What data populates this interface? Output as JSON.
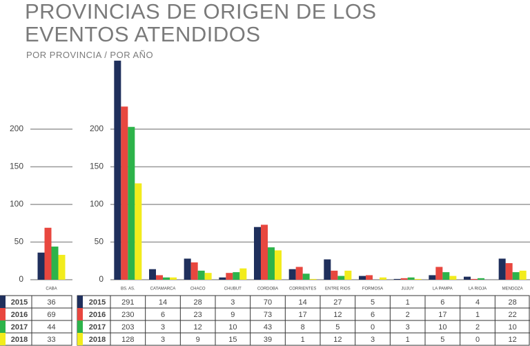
{
  "title": "PROVINCIAS DE ORIGEN DE LOS EVENTOS ATENDIDOS",
  "subtitle": "POR PROVINCIA / POR AÑO",
  "chart_data": [
    {
      "type": "bar",
      "categories": [
        "CABA"
      ],
      "series": [
        {
          "name": "2015",
          "color": "#1f2f5c",
          "values": [
            36
          ]
        },
        {
          "name": "2016",
          "color": "#e8473f",
          "values": [
            69
          ]
        },
        {
          "name": "2017",
          "color": "#2db34a",
          "values": [
            44
          ]
        },
        {
          "name": "2018",
          "color": "#f2ec1c",
          "values": [
            33
          ]
        }
      ],
      "ylim": [
        0,
        300
      ],
      "yticks": [
        0,
        50,
        100,
        150,
        200
      ],
      "grid": true
    },
    {
      "type": "bar",
      "categories": [
        "BS. AS.",
        "CATAMARCA",
        "CHACO",
        "CHUBUT",
        "CORDOBA",
        "CORRIENTES",
        "ENTRE RIOS",
        "FORMOSA",
        "JUJUY",
        "LA PAMPA",
        "LA RIOJA",
        "MENDOZA"
      ],
      "series": [
        {
          "name": "2015",
          "color": "#1f2f5c",
          "values": [
            291,
            14,
            28,
            3,
            70,
            14,
            27,
            5,
            1,
            6,
            4,
            28
          ]
        },
        {
          "name": "2016",
          "color": "#e8473f",
          "values": [
            230,
            6,
            23,
            9,
            73,
            17,
            12,
            6,
            2,
            17,
            1,
            22
          ]
        },
        {
          "name": "2017",
          "color": "#2db34a",
          "values": [
            203,
            3,
            12,
            10,
            43,
            8,
            5,
            0,
            3,
            10,
            2,
            10
          ]
        },
        {
          "name": "2018",
          "color": "#f2ec1c",
          "values": [
            128,
            3,
            9,
            15,
            39,
            1,
            12,
            3,
            1,
            5,
            0,
            12
          ]
        }
      ],
      "ylim": [
        0,
        300
      ],
      "yticks": [
        0,
        50,
        100,
        150,
        200
      ],
      "grid": true
    }
  ]
}
